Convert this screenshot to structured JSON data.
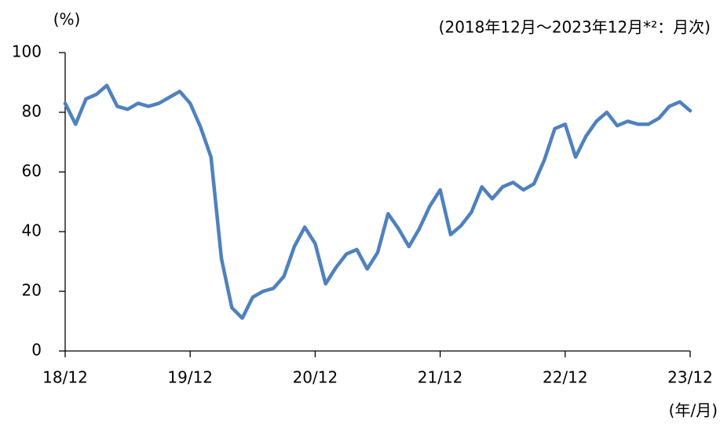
{
  "chart_data": {
    "type": "line",
    "y_label": "(%)",
    "subtitle": "(2018年12月～2023年12月*²：月次)",
    "x_label": "(年/月)",
    "categories": [
      "18/12",
      null,
      null,
      null,
      null,
      null,
      null,
      null,
      null,
      null,
      null,
      null,
      "19/12",
      null,
      null,
      null,
      null,
      null,
      null,
      null,
      null,
      null,
      null,
      null,
      "20/12",
      null,
      null,
      null,
      null,
      null,
      null,
      null,
      null,
      null,
      null,
      null,
      "21/12",
      null,
      null,
      null,
      null,
      null,
      null,
      null,
      null,
      null,
      null,
      null,
      "22/12",
      null,
      null,
      null,
      null,
      null,
      null,
      null,
      null,
      null,
      null,
      null,
      "23/12"
    ],
    "values": [
      83,
      76,
      84.5,
      86,
      89,
      82,
      81,
      83,
      82,
      83,
      85,
      87,
      83,
      75,
      65,
      31,
      14.5,
      11,
      18,
      20,
      21,
      25,
      35,
      41.5,
      36,
      22.5,
      28,
      32.5,
      34,
      27.5,
      33,
      46,
      41,
      35,
      41,
      48.5,
      54,
      39,
      42,
      46.5,
      55,
      51,
      55,
      56.5,
      54,
      56,
      64,
      74.5,
      76,
      65,
      72,
      77,
      80,
      75.5,
      77,
      76,
      76,
      78,
      82,
      83.5,
      80.5
    ],
    "color": "#4f81bd",
    "ylim": [
      0,
      100
    ],
    "yticks": [
      0,
      20,
      40,
      60,
      80,
      100
    ],
    "grid": false
  }
}
